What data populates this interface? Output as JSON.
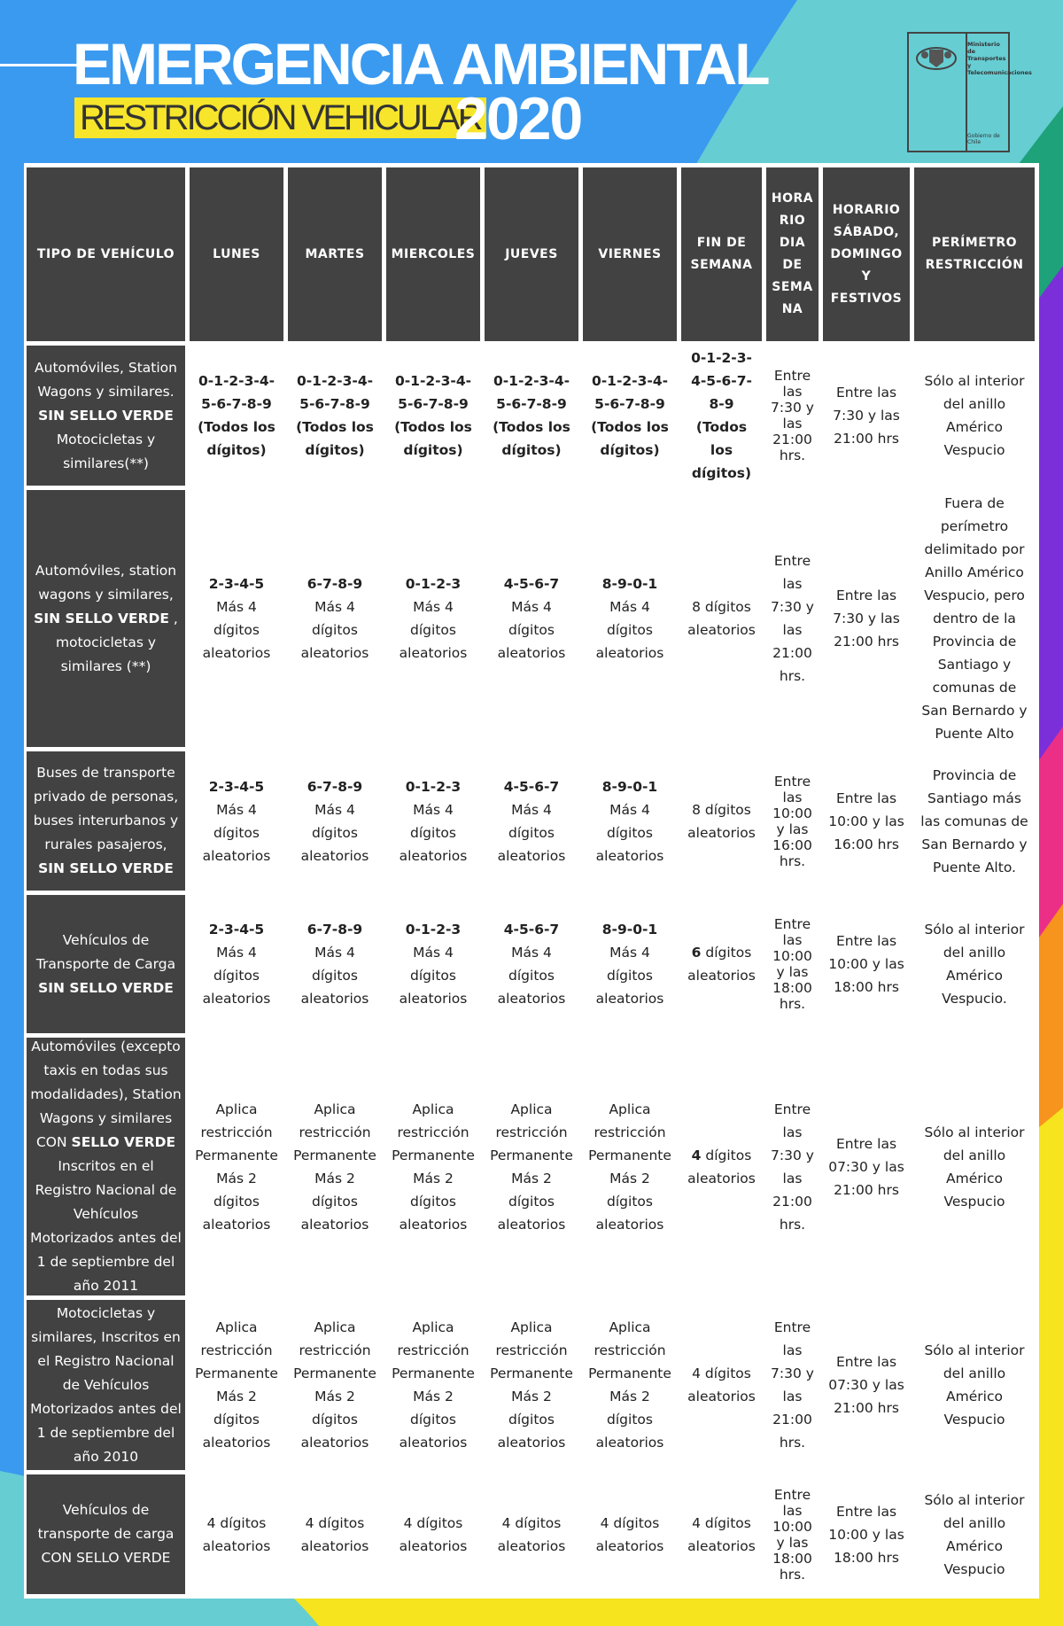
{
  "header": {
    "title": "EMERGENCIA AMBIENTAL",
    "subtitle": "RESTRICCIÓN VEHICULAR",
    "year": "2020",
    "logo": {
      "ministry": "Ministerio de Transportes y Telecomunicaciones",
      "government": "Gobierno de Chile"
    }
  },
  "table": {
    "headers": [
      "TIPO DE VEHÍCULO",
      "LUNES",
      "MARTES",
      "MIERCOLES",
      "JUEVES",
      "VIERNES",
      "FIN DE SEMANA",
      "HORA RIO DIA DE SEMA NA",
      "HORARIO SÁBADO, DOMINGO Y FESTIVOS",
      "PERÍMETRO RESTRICCIÓN"
    ],
    "rows": [
      {
        "vehicle_pre": "Automóviles, Station Wagons y similares.",
        "vehicle_bold": "SIN SELLO VERDE",
        "vehicle_post": "Motocicletas y similares(**)",
        "days": [
          {
            "digits": "0-1-2-3-4-5-6-7-8-9 (Todos los dígitos)",
            "extra": ""
          },
          {
            "digits": "0-1-2-3-4-5-6-7-8-9 (Todos los dígitos)",
            "extra": ""
          },
          {
            "digits": "0-1-2-3-4-5-6-7-8-9 (Todos los dígitos)",
            "extra": ""
          },
          {
            "digits": "0-1-2-3-4-5-6-7-8-9 (Todos los dígitos)",
            "extra": ""
          },
          {
            "digits": "0-1-2-3-4-5-6-7-8-9 (Todos los dígitos)",
            "extra": ""
          }
        ],
        "weekend_bold": "0-1-2-3-4-5-6-7-8-9 (Todos los dígitos)",
        "weekend_text": "",
        "weekday_hours": "Entre las 7:30 y las 21:00 hrs.",
        "weekend_hours": "Entre las 7:30 y las 21:00 hrs",
        "perimeter": "Sólo al interior del anillo Américo Vespucio"
      },
      {
        "vehicle_pre": "Automóviles, station wagons y similares,",
        "vehicle_bold": "SIN SELLO VERDE",
        "vehicle_post": ", motocicletas y similares (**)",
        "days": [
          {
            "digits": "2-3-4-5",
            "extra": "Más 4 dígitos aleatorios"
          },
          {
            "digits": "6-7-8-9",
            "extra": "Más 4 dígitos aleatorios"
          },
          {
            "digits": "0-1-2-3",
            "extra": "Más 4 dígitos aleatorios"
          },
          {
            "digits": "4-5-6-7",
            "extra": "Más 4 dígitos aleatorios"
          },
          {
            "digits": "8-9-0-1",
            "extra": "Más 4 dígitos aleatorios"
          }
        ],
        "weekend_bold": "",
        "weekend_text": "8 dígitos aleatorios",
        "weekday_hours": "Entre las 7:30 y las 21:00 hrs.",
        "weekend_hours": "Entre las 7:30 y las 21:00 hrs",
        "perimeter": "Fuera de perímetro delimitado por Anillo Américo Vespucio, pero dentro de la Provincia de Santiago y comunas de San Bernardo y Puente Alto"
      },
      {
        "vehicle_pre": "Buses de transporte privado de personas, buses interurbanos y rurales pasajeros,",
        "vehicle_bold": "SIN SELLO VERDE",
        "vehicle_post": "",
        "days": [
          {
            "digits": "2-3-4-5",
            "extra": "Más 4 dígitos aleatorios"
          },
          {
            "digits": "6-7-8-9",
            "extra": "Más 4 dígitos aleatorios"
          },
          {
            "digits": "0-1-2-3",
            "extra": "Más 4 dígitos aleatorios"
          },
          {
            "digits": "4-5-6-7",
            "extra": "Más 4 dígitos aleatorios"
          },
          {
            "digits": "8-9-0-1",
            "extra": "Más 4 dígitos aleatorios"
          }
        ],
        "weekend_bold": "",
        "weekend_text": "8 dígitos aleatorios",
        "weekday_hours": "Entre las 10:00 y las 16:00 hrs.",
        "weekend_hours": "Entre las 10:00 y las 16:00 hrs",
        "perimeter": "Provincia de Santiago más las comunas de San Bernardo y Puente Alto."
      },
      {
        "vehicle_pre": "Vehículos de Transporte de Carga",
        "vehicle_bold": "SIN SELLO VERDE",
        "vehicle_post": "",
        "days": [
          {
            "digits": "2-3-4-5",
            "extra": "Más 4 dígitos aleatorios"
          },
          {
            "digits": "6-7-8-9",
            "extra": "Más 4 dígitos aleatorios"
          },
          {
            "digits": "0-1-2-3",
            "extra": "Más 4 dígitos aleatorios"
          },
          {
            "digits": "4-5-6-7",
            "extra": "Más 4 dígitos aleatorios"
          },
          {
            "digits": "8-9-0-1",
            "extra": "Más 4 dígitos aleatorios"
          }
        ],
        "weekend_bold": "6",
        "weekend_text": "dígitos aleatorios",
        "weekday_hours": "Entre las 10:00 y las 18:00 hrs.",
        "weekend_hours": "Entre las 10:00 y las 18:00 hrs",
        "perimeter": "Sólo al interior del anillo Américo Vespucio."
      },
      {
        "vehicle_pre": "Automóviles (excepto taxis en todas sus modalidades), Station Wagons y similares CON",
        "vehicle_bold": "SELLO VERDE",
        "vehicle_post": "Inscritos en el Registro Nacional de Vehículos Motorizados antes del 1 de septiembre del año 2011",
        "days": [
          {
            "digits": "",
            "extra": "Aplica restricción Permanente Más 2 dígitos aleatorios"
          },
          {
            "digits": "",
            "extra": "Aplica restricción Permanente Más 2 dígitos aleatorios"
          },
          {
            "digits": "",
            "extra": "Aplica restricción Permanente Más 2 dígitos aleatorios"
          },
          {
            "digits": "",
            "extra": "Aplica restricción Permanente Más 2 dígitos aleatorios"
          },
          {
            "digits": "",
            "extra": "Aplica restricción Permanente Más 2 dígitos aleatorios"
          }
        ],
        "weekend_bold": "4",
        "weekend_text": "dígitos aleatorios",
        "weekday_hours": "Entre las 7:30 y las 21:00 hrs.",
        "weekend_hours": "Entre las 07:30 y las 21:00 hrs",
        "perimeter": "Sólo al interior del anillo Américo Vespucio"
      },
      {
        "vehicle_pre": "Motocicletas y similares, Inscritos en el Registro Nacional de Vehículos Motorizados antes del 1 de septiembre del año 2010",
        "vehicle_bold": "",
        "vehicle_post": "",
        "days": [
          {
            "digits": "",
            "extra": "Aplica restricción Permanente Más 2 dígitos aleatorios"
          },
          {
            "digits": "",
            "extra": "Aplica restricción Permanente Más 2 dígitos aleatorios"
          },
          {
            "digits": "",
            "extra": "Aplica restricción Permanente Más 2 dígitos aleatorios"
          },
          {
            "digits": "",
            "extra": "Aplica restricción Permanente Más 2 dígitos aleatorios"
          },
          {
            "digits": "",
            "extra": "Aplica restricción Permanente Más 2 dígitos aleatorios"
          }
        ],
        "weekend_bold": "",
        "weekend_text": "4 dígitos aleatorios",
        "weekday_hours": "Entre las 7:30 y las 21:00 hrs.",
        "weekend_hours": "Entre las 07:30 y las 21:00 hrs",
        "perimeter": "Sólo al interior del anillo Américo Vespucio"
      },
      {
        "vehicle_pre": "Vehículos de transporte de carga CON SELLO VERDE",
        "vehicle_bold": "",
        "vehicle_post": "",
        "days": [
          {
            "digits": "",
            "extra": "4 dígitos aleatorios"
          },
          {
            "digits": "",
            "extra": "4 dígitos aleatorios"
          },
          {
            "digits": "",
            "extra": "4 dígitos aleatorios"
          },
          {
            "digits": "",
            "extra": "4 dígitos aleatorios"
          },
          {
            "digits": "",
            "extra": "4 dígitos aleatorios"
          }
        ],
        "weekend_bold": "",
        "weekend_text": "4 dígitos aleatorios",
        "weekday_hours": "Entre las 10:00 y las 18:00 hrs.",
        "weekend_hours": "Entre las 10:00 y las 18:00 hrs",
        "perimeter": "Sólo al interior del anillo Américo Vespucio"
      }
    ]
  }
}
